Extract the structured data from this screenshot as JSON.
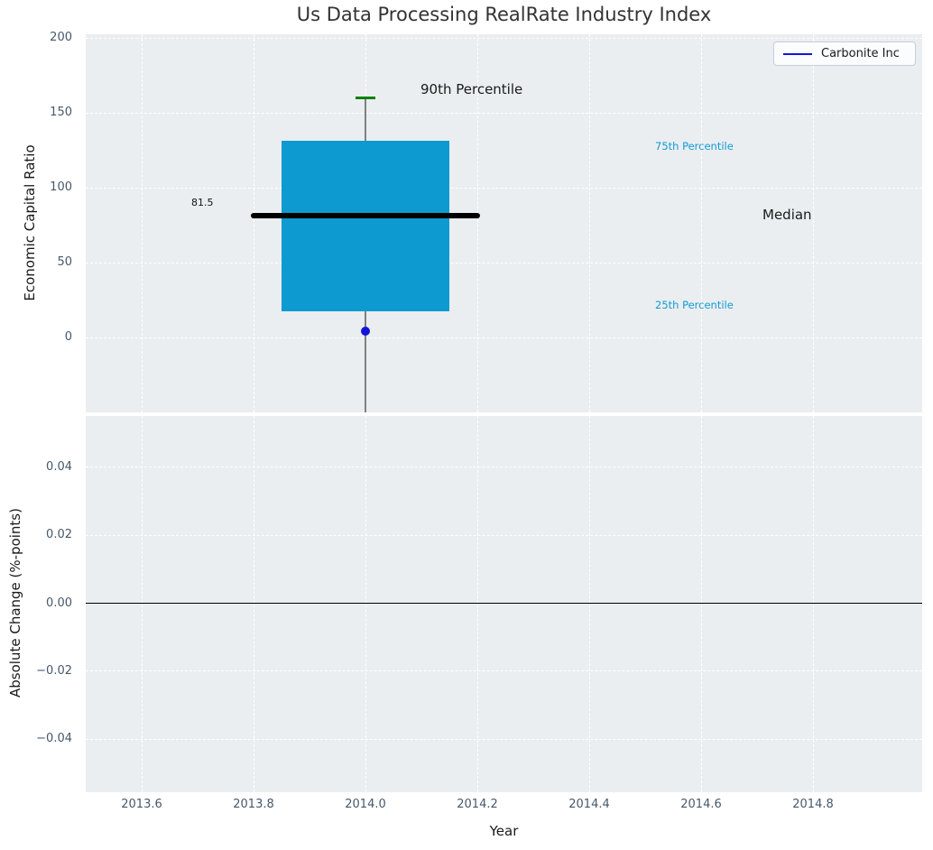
{
  "title": "Us Data Processing RealRate Industry Index",
  "legend": {
    "label": "Carbonite Inc",
    "line_color": "#1414d7"
  },
  "top_plot": {
    "ylabel": "Economic Capital Ratio",
    "annotations": {
      "p90": "90th Percentile",
      "p75": "75th Percentile",
      "median": "Median",
      "p25": "25th Percentile",
      "median_value": "81.5"
    }
  },
  "bottom_plot": {
    "ylabel": "Absolute Change (%-points)",
    "xlabel": "Year"
  },
  "colors": {
    "panel_bg": "#eaeef0",
    "grid": "#ffffff",
    "box_fill": "#0d9ad0",
    "median_line": "#000000",
    "whisker": "#808080",
    "cap_90th": "#008000",
    "carbonite_point": "#1414d7",
    "annotation_cyan": "#149bd3",
    "zero_line": "#000000",
    "tick_label": "#47586c"
  },
  "chart_data": [
    {
      "type": "boxplot",
      "title": "Us Data Processing RealRate Industry Index",
      "ylabel": "Economic Capital Ratio",
      "xlabel": "",
      "xlim": [
        2013.5,
        2015.0
      ],
      "ylim": [
        -50,
        202
      ],
      "grid": "white dashed, on",
      "legend_entries": [
        "Carbonite Inc"
      ],
      "legend_position": "upper right",
      "xticks": [
        {
          "v": 2013.6,
          "label": "2013.6"
        },
        {
          "v": 2013.8,
          "label": "2013.8"
        },
        {
          "v": 2014.0,
          "label": "2014.0"
        },
        {
          "v": 2014.2,
          "label": "2014.2"
        },
        {
          "v": 2014.4,
          "label": "2014.4"
        },
        {
          "v": 2014.6,
          "label": "2014.6"
        },
        {
          "v": 2014.8,
          "label": "2014.8"
        }
      ],
      "yticks": [
        {
          "v": 200,
          "label": "200"
        },
        {
          "v": 150,
          "label": "150"
        },
        {
          "v": 100,
          "label": "100"
        },
        {
          "v": 50,
          "label": "50"
        },
        {
          "v": 0,
          "label": "0"
        }
      ],
      "boxes": [
        {
          "x": 2014.0,
          "box_left": 2013.85,
          "box_right": 2014.15,
          "q1": 17.5,
          "median": 81.5,
          "q3": 131.5,
          "p90": 160,
          "median_line_left": 2013.795,
          "median_line_right": 2014.205,
          "cap_halfwidth": 0.018,
          "lower_whisker_clipped_below_axis": true
        }
      ],
      "points": [
        {
          "series": "Carbonite Inc",
          "x": 2014.0,
          "y": 4
        }
      ],
      "annotations": [
        "90th Percentile",
        "75th Percentile",
        "Median",
        "25th Percentile",
        "81.5"
      ]
    },
    {
      "type": "line",
      "title": "",
      "ylabel": "Absolute Change (%-points)",
      "xlabel": "Year",
      "xlim": [
        2013.5,
        2015.0
      ],
      "ylim": [
        -0.055,
        0.055
      ],
      "grid": "white dashed, on",
      "xticks": [
        {
          "v": 2013.6,
          "label": "2013.6"
        },
        {
          "v": 2013.8,
          "label": "2013.8"
        },
        {
          "v": 2014.0,
          "label": "2014.0"
        },
        {
          "v": 2014.2,
          "label": "2014.2"
        },
        {
          "v": 2014.4,
          "label": "2014.4"
        },
        {
          "v": 2014.6,
          "label": "2014.6"
        },
        {
          "v": 2014.8,
          "label": "2014.8"
        }
      ],
      "yticks": [
        {
          "v": 0.04,
          "label": "0.04"
        },
        {
          "v": 0.02,
          "label": "0.02"
        },
        {
          "v": 0.0,
          "label": "0.00"
        },
        {
          "v": -0.02,
          "label": "−0.02"
        },
        {
          "v": -0.04,
          "label": "−0.04"
        }
      ],
      "series": [],
      "hline": 0.0
    }
  ]
}
